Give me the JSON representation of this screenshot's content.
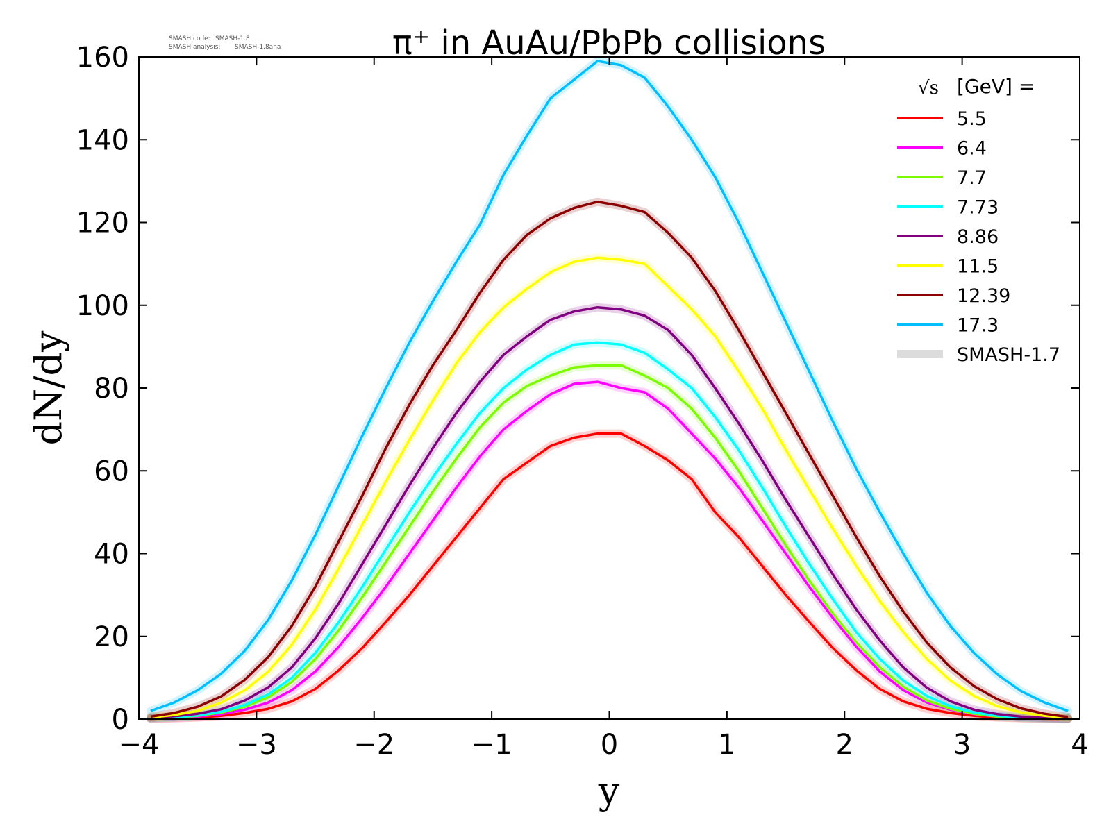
{
  "version_info": {
    "line1_label": "SMASH code:",
    "line1_value": "SMASH-1.8",
    "line2_label": "SMASH analysis:",
    "line2_value": "SMASH-1.8ana"
  },
  "chart_data": {
    "type": "line",
    "title": "π⁺ in AuAu/PbPb collisions",
    "xlabel": "y",
    "ylabel": "dN/dy",
    "xlim": [
      -4,
      4
    ],
    "ylim": [
      0,
      160
    ],
    "xticks": [
      -4,
      -3,
      -2,
      -1,
      0,
      1,
      2,
      3,
      4
    ],
    "xtick_labels": [
      "−4",
      "−3",
      "−2",
      "−1",
      "0",
      "1",
      "2",
      "3",
      "4"
    ],
    "yticks": [
      0,
      20,
      40,
      60,
      80,
      100,
      120,
      140,
      160
    ],
    "grid": false,
    "legend": {
      "placement": "top-right",
      "title_prefix": "√s",
      "title_suffix": "[GeV] =",
      "reference_label": "SMASH-1.7",
      "reference_color": "#dcdcdc"
    },
    "x": [
      -3.9,
      -3.7,
      -3.5,
      -3.3,
      -3.1,
      -2.9,
      -2.7,
      -2.5,
      -2.3,
      -2.1,
      -1.9,
      -1.7,
      -1.5,
      -1.3,
      -1.1,
      -0.9,
      -0.7,
      -0.5,
      -0.3,
      -0.1,
      0.1,
      0.3,
      0.5,
      0.7,
      0.9,
      1.1,
      1.3,
      1.5,
      1.7,
      1.9,
      2.1,
      2.3,
      2.5,
      2.7,
      2.9,
      3.1,
      3.3,
      3.5,
      3.7,
      3.9
    ],
    "series": [
      {
        "name": "5.5",
        "color": "#ff0000",
        "values": [
          0.1,
          0.2,
          0.4,
          0.8,
          1.5,
          2.5,
          4.3,
          7.3,
          11.8,
          17.2,
          23.5,
          30.0,
          37.0,
          44.0,
          51.0,
          58.0,
          62.0,
          66.0,
          68.0,
          69.0,
          69.0,
          66.0,
          62.5,
          58.0,
          50.0,
          44.0,
          37.0,
          30.0,
          23.5,
          17.2,
          11.8,
          7.3,
          4.3,
          2.5,
          1.5,
          0.8,
          0.4,
          0.2,
          0.1,
          0.05
        ]
      },
      {
        "name": "6.4",
        "color": "#ff00ff",
        "values": [
          0.15,
          0.3,
          0.6,
          1.2,
          2.3,
          4.0,
          7.0,
          11.5,
          17.5,
          24.5,
          32.0,
          40.0,
          48.0,
          56.0,
          63.5,
          70.0,
          74.5,
          78.5,
          81.0,
          81.5,
          80.0,
          79.0,
          75.0,
          69.0,
          63.0,
          56.0,
          48.0,
          40.0,
          32.0,
          24.5,
          17.5,
          11.5,
          7.0,
          4.0,
          2.3,
          1.2,
          0.6,
          0.3,
          0.15,
          0.08
        ]
      },
      {
        "name": "7.7",
        "color": "#7cfc00",
        "values": [
          0.2,
          0.4,
          0.8,
          1.6,
          3.0,
          5.3,
          9.0,
          14.5,
          21.5,
          29.5,
          38.0,
          46.5,
          55.0,
          63.0,
          70.5,
          76.5,
          80.5,
          83.0,
          85.0,
          85.5,
          85.5,
          83.0,
          80.0,
          75.0,
          68.0,
          60.0,
          51.0,
          42.0,
          33.5,
          25.5,
          18.5,
          12.5,
          7.8,
          4.5,
          2.5,
          1.3,
          0.6,
          0.3,
          0.15,
          0.07
        ]
      },
      {
        "name": "7.73",
        "color": "#00ffff",
        "values": [
          0.2,
          0.45,
          0.9,
          1.8,
          3.4,
          6.0,
          10.0,
          16.0,
          23.5,
          32.0,
          41.0,
          50.0,
          58.5,
          66.5,
          74.0,
          80.0,
          84.5,
          88.0,
          90.5,
          91.0,
          90.5,
          88.5,
          84.5,
          80.0,
          73.0,
          65.0,
          56.0,
          46.5,
          37.5,
          29.0,
          21.0,
          14.5,
          9.3,
          5.6,
          3.1,
          1.6,
          0.8,
          0.4,
          0.2,
          0.08
        ]
      },
      {
        "name": "8.86",
        "color": "#800080",
        "values": [
          0.3,
          0.7,
          1.3,
          2.4,
          4.5,
          7.7,
          12.5,
          19.5,
          28.0,
          37.5,
          47.0,
          56.5,
          65.5,
          74.0,
          81.5,
          88.0,
          92.5,
          96.5,
          98.5,
          99.5,
          99.0,
          97.5,
          94.0,
          88.0,
          80.0,
          71.5,
          62.5,
          53.0,
          44.0,
          35.0,
          26.5,
          19.0,
          12.5,
          7.6,
          4.3,
          2.3,
          1.2,
          0.6,
          0.3,
          0.12
        ]
      },
      {
        "name": "11.5",
        "color": "#ffff00",
        "values": [
          0.4,
          1.0,
          2.0,
          4.0,
          7.0,
          11.5,
          18.0,
          26.5,
          36.5,
          47.0,
          57.5,
          67.5,
          77.0,
          86.0,
          93.5,
          99.5,
          104.0,
          108.0,
          110.5,
          111.5,
          111.0,
          110.0,
          104.5,
          99.0,
          92.5,
          84.0,
          75.0,
          65.0,
          55.5,
          46.0,
          37.0,
          28.5,
          21.0,
          14.5,
          9.3,
          5.6,
          3.1,
          1.6,
          0.8,
          0.3
        ]
      },
      {
        "name": "12.39",
        "color": "#8b0000",
        "values": [
          0.6,
          1.5,
          3.0,
          5.5,
          9.5,
          15.0,
          22.5,
          32.0,
          43.0,
          54.0,
          65.5,
          76.0,
          85.5,
          94.0,
          103.0,
          111.0,
          117.0,
          121.0,
          123.5,
          125.0,
          124.0,
          122.5,
          117.5,
          111.5,
          103.5,
          94.0,
          84.0,
          74.0,
          64.0,
          54.0,
          44.0,
          34.5,
          26.0,
          18.5,
          12.5,
          8.0,
          4.8,
          2.6,
          1.3,
          0.5
        ]
      },
      {
        "name": "17.3",
        "color": "#00bfff",
        "values": [
          2.0,
          4.0,
          7.0,
          11.0,
          16.5,
          24.0,
          33.5,
          44.5,
          56.5,
          68.5,
          80.0,
          91.0,
          101.0,
          110.5,
          119.5,
          131.5,
          141.0,
          150.0,
          154.5,
          159.0,
          158.0,
          155.0,
          148.0,
          140.0,
          131.0,
          120.0,
          108.0,
          96.0,
          84.0,
          72.0,
          60.5,
          50.0,
          40.0,
          30.5,
          22.5,
          16.0,
          10.8,
          6.8,
          4.0,
          2.0
        ]
      }
    ]
  }
}
